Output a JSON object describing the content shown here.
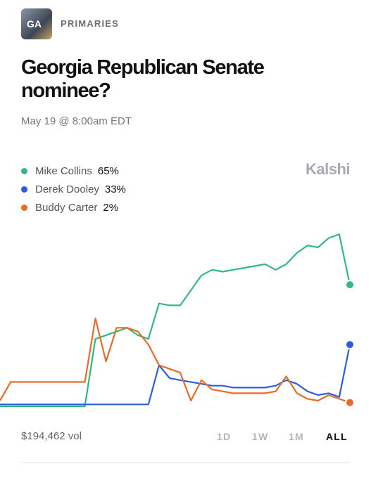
{
  "header": {
    "icon_label": "GA",
    "category": "PRIMARIES",
    "title": "Georgia Republican Senate nominee?",
    "date": "May 19 @ 8:00am EDT",
    "brand": "Kalshi"
  },
  "chart_data": {
    "type": "line",
    "ylim": [
      0,
      100
    ],
    "series": [
      {
        "name": "Mike Collins",
        "label": "65%",
        "color": "#2fb986",
        "values": [
          0,
          0,
          0,
          0,
          0,
          0,
          0,
          0,
          0,
          36,
          38,
          40,
          42,
          38,
          36,
          55,
          54,
          54,
          62,
          70,
          73,
          72,
          73,
          74,
          75,
          76,
          73,
          76,
          82,
          86,
          85,
          90,
          92,
          65
        ]
      },
      {
        "name": "Derek Dooley",
        "label": "33%",
        "color": "#2c5de0",
        "values": [
          1,
          1,
          1,
          1,
          1,
          1,
          1,
          1,
          1,
          1,
          1,
          1,
          1,
          1,
          1,
          22,
          15,
          14,
          13,
          12,
          11,
          11,
          10,
          10,
          10,
          10,
          11,
          14,
          12,
          8,
          6,
          7,
          5,
          33
        ]
      },
      {
        "name": "Buddy Carter",
        "label": "2%",
        "color": "#ea6a26",
        "values": [
          3,
          13,
          13,
          13,
          13,
          13,
          13,
          13,
          13,
          47,
          24,
          42,
          42,
          40,
          33,
          22,
          20,
          18,
          3,
          14,
          9,
          8,
          7,
          7,
          7,
          7,
          8,
          16,
          7,
          4,
          3,
          6,
          4,
          2
        ]
      }
    ]
  },
  "footer": {
    "volume": "$194,462 vol",
    "timeframes": [
      "1D",
      "1W",
      "1M",
      "ALL"
    ],
    "active": "ALL"
  }
}
